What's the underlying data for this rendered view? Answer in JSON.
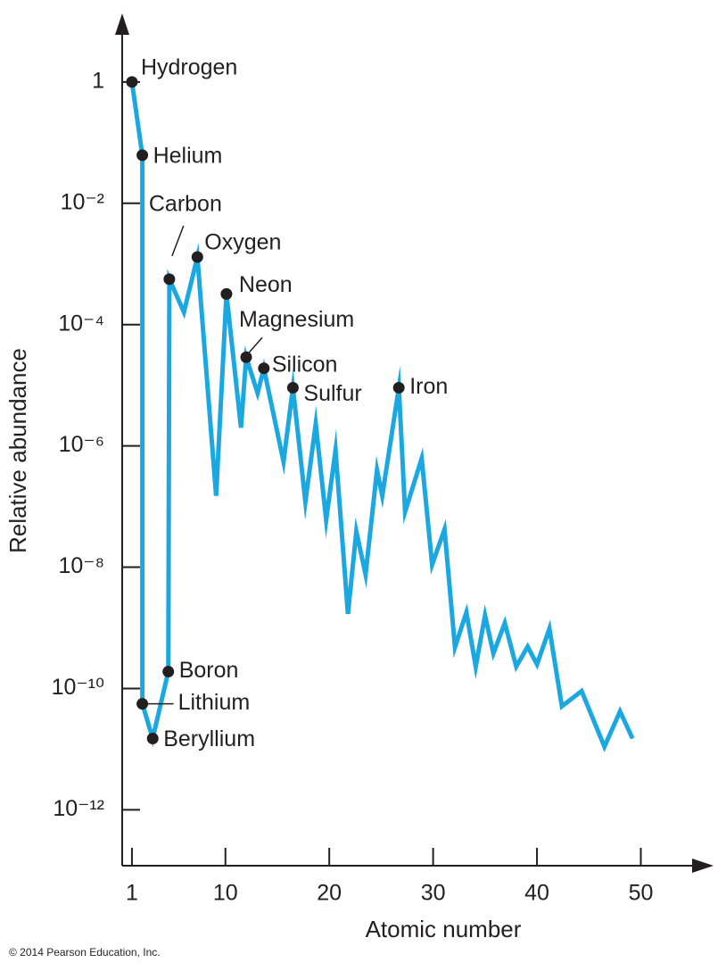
{
  "chart_data": {
    "type": "line",
    "yscale": "log",
    "color": "#1ba8e0",
    "xlabel": "Atomic number",
    "ylabel": "Relative abundance",
    "credit": "© 2014 Pearson Education, Inc.",
    "xlim": [
      0.06,
      57
    ],
    "ylim": [
      1.2e-13,
      13.5
    ],
    "xticks": [
      1,
      10,
      20,
      30,
      40,
      50
    ],
    "yticks": [
      1,
      {
        "value": 0.01,
        "label": "10⁻²"
      },
      {
        "value": 0.0001,
        "label": "10⁻⁴"
      },
      {
        "value": 1e-06,
        "label": "10⁻⁶"
      },
      {
        "value": 1e-08,
        "label": "10⁻⁸"
      },
      {
        "value": 1e-10,
        "label": "10⁻¹⁰"
      },
      {
        "value": 1e-12,
        "label": "10⁻¹²"
      }
    ],
    "x": [
      1.0,
      2.0,
      2.0,
      3.0,
      4.5,
      4.6,
      6.0,
      7.3,
      9.1,
      10.1,
      11.5,
      12.0,
      13.1,
      13.7,
      15.6,
      16.5,
      17.7,
      18.7,
      19.7,
      20.6,
      21.8,
      22.6,
      23.5,
      24.6,
      25.1,
      26.7,
      27.3,
      28.9,
      29.9,
      31.1,
      32.1,
      33.2,
      34.1,
      35.0,
      35.8,
      36.9,
      38.0,
      39.1,
      40.0,
      41.2,
      42.4,
      44.3,
      46.5,
      48.0,
      49.2
    ],
    "values": [
      1,
      0.062,
      5.6e-11,
      1.5e-11,
      1.9e-10,
      0.00056,
      0.00016,
      0.0013,
      1.5e-07,
      0.00032,
      2e-06,
      2.9e-05,
      7.4e-06,
      1.9e-05,
      5.5e-07,
      9.1e-06,
      1.2e-07,
      2.3e-06,
      6e-08,
      8.5e-07,
      1.7e-09,
      3.9e-08,
      7.6e-09,
      4e-07,
      1.5e-07,
      9.1e-06,
      8.2e-08,
      6.2e-07,
      1.1e-08,
      4.2e-08,
      4.8e-10,
      1.8e-09,
      2.3e-10,
      1.6e-09,
      3.8e-10,
      1.2e-09,
      2.3e-10,
      4.9e-10,
      2.5e-10,
      9.7e-10,
      5.1e-11,
      9.1e-11,
      1.1e-11,
      4.2e-11,
      1.5e-11
    ],
    "annotations": [
      {
        "text": "Hydrogen",
        "point": 0
      },
      {
        "text": "Helium",
        "point": 1
      },
      {
        "text": "Lithium",
        "point": 2
      },
      {
        "text": "Beryllium",
        "point": 3
      },
      {
        "text": "Boron",
        "point": 4
      },
      {
        "text": "Carbon",
        "point": 5
      },
      {
        "text": "Oxygen",
        "point": 7
      },
      {
        "text": "Neon",
        "point": 9
      },
      {
        "text": "Magnesium",
        "point": 11
      },
      {
        "text": "Silicon",
        "point": 13
      },
      {
        "text": "Sulfur",
        "point": 15
      },
      {
        "text": "Iron",
        "point": 25
      }
    ]
  }
}
